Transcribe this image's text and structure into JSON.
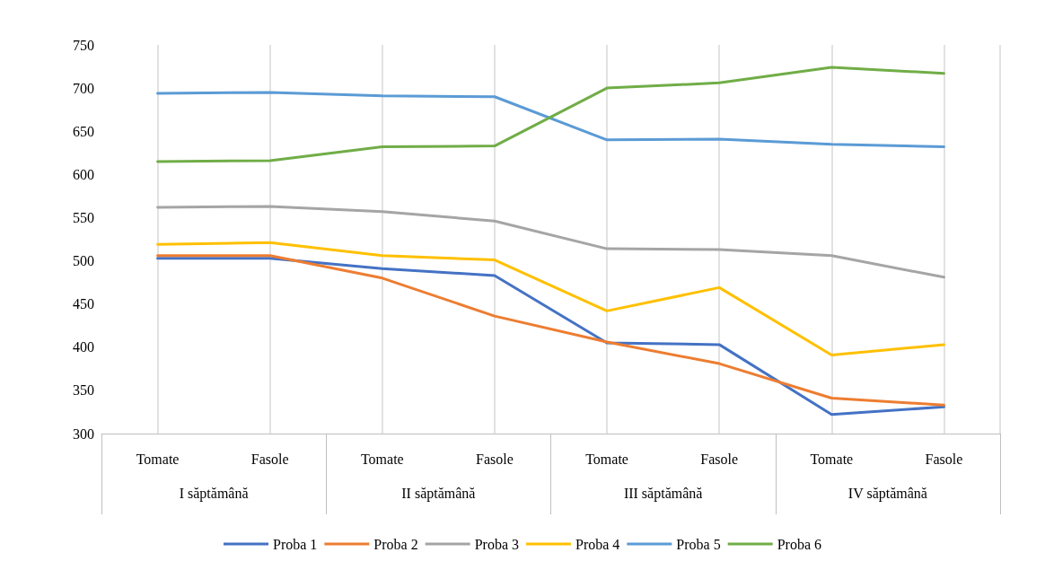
{
  "chart_data": {
    "type": "line",
    "categories": [
      "Tomate",
      "Fasole",
      "Tomate",
      "Fasole",
      "Tomate",
      "Fasole",
      "Tomate",
      "Fasole"
    ],
    "annotations": [
      "I săptămână",
      "II săptămână",
      "III săptămână",
      "IV săptămână"
    ],
    "series": [
      {
        "name": "Proba 1",
        "color": "#4472c4",
        "values": [
          503,
          503,
          491,
          483,
          405,
          403,
          322,
          331
        ]
      },
      {
        "name": "Proba 2",
        "color": "#ed7d31",
        "values": [
          506,
          506,
          480,
          436,
          406,
          381,
          341,
          333
        ]
      },
      {
        "name": "Proba 3",
        "color": "#a5a5a5",
        "values": [
          562,
          563,
          557,
          546,
          514,
          513,
          506,
          481
        ]
      },
      {
        "name": "Proba 4",
        "color": "#ffc000",
        "values": [
          519,
          521,
          506,
          501,
          442,
          469,
          391,
          403
        ]
      },
      {
        "name": "Proba 5",
        "color": "#5b9bd5",
        "values": [
          694,
          695,
          691,
          690,
          640,
          641,
          635,
          632
        ]
      },
      {
        "name": "Proba 6",
        "color": "#70ad47",
        "values": [
          615,
          616,
          632,
          633,
          700,
          706,
          724,
          717
        ]
      }
    ],
    "ylim": [
      300,
      750
    ],
    "yticks": [
      300,
      350,
      400,
      450,
      500,
      550,
      600,
      650,
      700,
      750
    ],
    "grid": "x",
    "legend": "bottom",
    "marker": "none",
    "line_style": "solid"
  }
}
